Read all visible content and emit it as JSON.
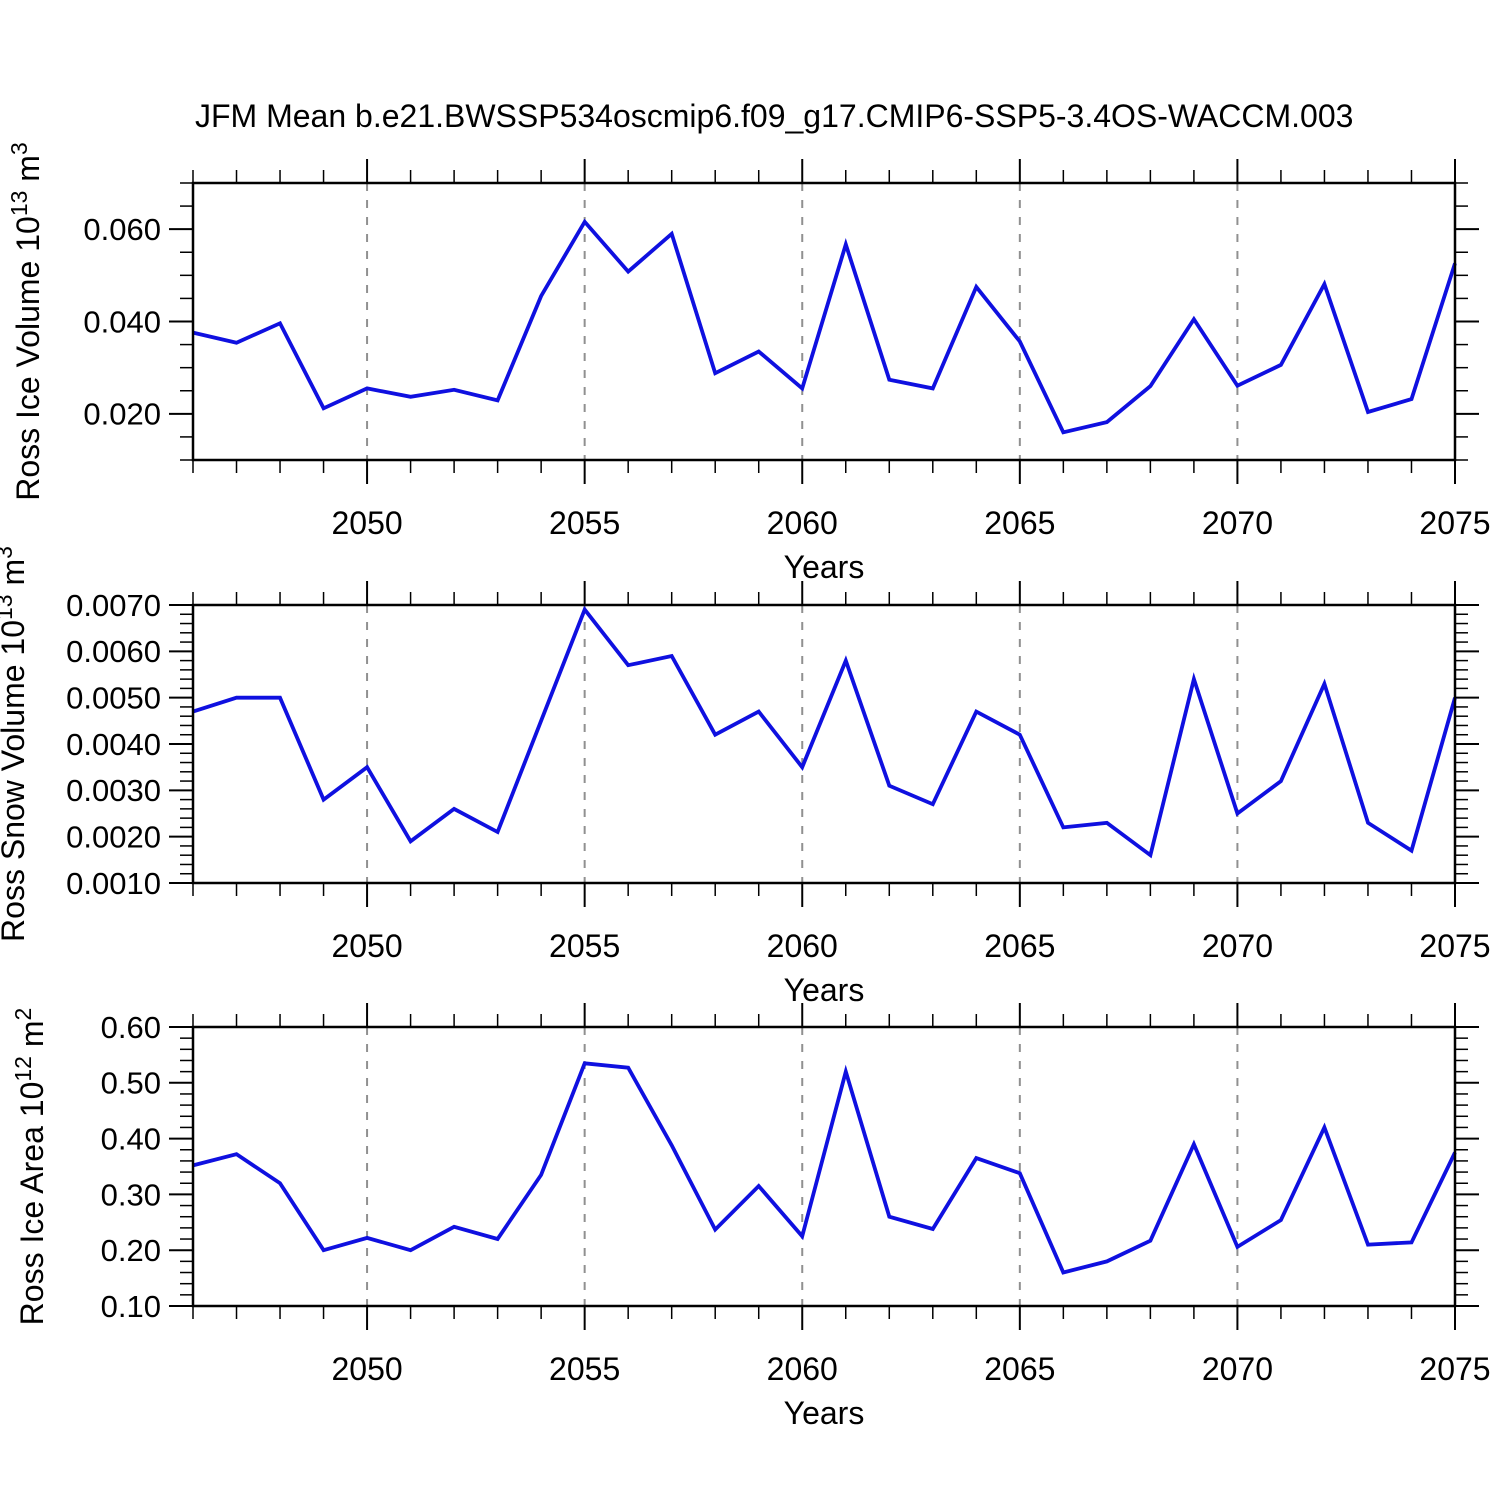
{
  "title": "JFM Mean b.e21.BWSSP534oscmip6.f09_g17.CMIP6-SSP5-3.4OS-WACCM.003",
  "colors": {
    "line": "#0f10e0",
    "grid": "#909090",
    "axis": "#000000",
    "text": "#000000",
    "background": "#ffffff"
  },
  "x_axis": {
    "label": "Years",
    "years": [
      2046,
      2047,
      2048,
      2049,
      2050,
      2051,
      2052,
      2053,
      2054,
      2055,
      2056,
      2057,
      2058,
      2059,
      2060,
      2061,
      2062,
      2063,
      2064,
      2065,
      2066,
      2067,
      2068,
      2069,
      2070,
      2071,
      2072,
      2073,
      2074,
      2075
    ],
    "tick_label_years": [
      2050,
      2055,
      2060,
      2065,
      2070,
      2075
    ],
    "gridline_years": [
      2050,
      2055,
      2060,
      2065,
      2070
    ],
    "range": [
      2046,
      2075
    ]
  },
  "chart_data": [
    {
      "type": "line",
      "title": "",
      "ylabel": "Ross Ice Volume 10^13 m^3",
      "ylabel_segments": [
        {
          "text": "Ross Ice Volume 10",
          "sup": false
        },
        {
          "text": "13",
          "sup": true
        },
        {
          "text": " m",
          "sup": false
        },
        {
          "text": "3",
          "sup": true
        }
      ],
      "xlabel": "Years",
      "x": [
        2046,
        2047,
        2048,
        2049,
        2050,
        2051,
        2052,
        2053,
        2054,
        2055,
        2056,
        2057,
        2058,
        2059,
        2060,
        2061,
        2062,
        2063,
        2064,
        2065,
        2066,
        2067,
        2068,
        2069,
        2070,
        2071,
        2072,
        2073,
        2074,
        2075
      ],
      "values": [
        0.0376,
        0.0354,
        0.0396,
        0.0212,
        0.0255,
        0.0237,
        0.0252,
        0.0229,
        0.0455,
        0.0616,
        0.0508,
        0.059,
        0.0288,
        0.0335,
        0.0255,
        0.0567,
        0.0274,
        0.0255,
        0.0475,
        0.0357,
        0.016,
        0.0182,
        0.026,
        0.0405,
        0.0261,
        0.0306,
        0.0481,
        0.0204,
        0.0232,
        0.0526
      ],
      "ylim": [
        0.01,
        0.07
      ],
      "ytick_values": [
        0.02,
        0.04,
        0.06
      ],
      "ytick_labels": [
        "0.020",
        "0.040",
        "0.060"
      ],
      "ytick_minor_step": 0.005,
      "grid": "vertical-dashed-at-major-x",
      "legend": "none"
    },
    {
      "type": "line",
      "title": "",
      "ylabel": "Ross Snow Volume 10^13 m^3",
      "ylabel_segments": [
        {
          "text": "Ross Snow Volume 10",
          "sup": false
        },
        {
          "text": "13",
          "sup": true
        },
        {
          "text": " m",
          "sup": false
        },
        {
          "text": "3",
          "sup": true
        }
      ],
      "xlabel": "Years",
      "x": [
        2046,
        2047,
        2048,
        2049,
        2050,
        2051,
        2052,
        2053,
        2054,
        2055,
        2056,
        2057,
        2058,
        2059,
        2060,
        2061,
        2062,
        2063,
        2064,
        2065,
        2066,
        2067,
        2068,
        2069,
        2070,
        2071,
        2072,
        2073,
        2074,
        2075
      ],
      "values": [
        0.0047,
        0.005,
        0.005,
        0.0028,
        0.0035,
        0.0019,
        0.0026,
        0.0021,
        0.0045,
        0.0069,
        0.0057,
        0.0059,
        0.0042,
        0.0047,
        0.0035,
        0.0058,
        0.0031,
        0.0027,
        0.0047,
        0.0042,
        0.0022,
        0.0023,
        0.0016,
        0.0054,
        0.0025,
        0.0032,
        0.0053,
        0.0023,
        0.0017,
        0.005
      ],
      "ylim": [
        0.001,
        0.007
      ],
      "ytick_values": [
        0.001,
        0.002,
        0.003,
        0.004,
        0.005,
        0.006,
        0.007
      ],
      "ytick_labels": [
        "0.0010",
        "0.0020",
        "0.0030",
        "0.0040",
        "0.0050",
        "0.0060",
        "0.0070"
      ],
      "ytick_minor_step": 0.0002,
      "grid": "vertical-dashed-at-major-x",
      "legend": "none"
    },
    {
      "type": "line",
      "title": "",
      "ylabel": "Ross Ice Area 10^12 m^2",
      "ylabel_segments": [
        {
          "text": "Ross Ice Area 10",
          "sup": false
        },
        {
          "text": "12",
          "sup": true
        },
        {
          "text": " m",
          "sup": false
        },
        {
          "text": "2",
          "sup": true
        }
      ],
      "xlabel": "Years",
      "x": [
        2046,
        2047,
        2048,
        2049,
        2050,
        2051,
        2052,
        2053,
        2054,
        2055,
        2056,
        2057,
        2058,
        2059,
        2060,
        2061,
        2062,
        2063,
        2064,
        2065,
        2066,
        2067,
        2068,
        2069,
        2070,
        2071,
        2072,
        2073,
        2074,
        2075
      ],
      "values": [
        0.352,
        0.372,
        0.32,
        0.2,
        0.222,
        0.2,
        0.242,
        0.22,
        0.335,
        0.535,
        0.527,
        0.388,
        0.237,
        0.315,
        0.225,
        0.52,
        0.26,
        0.238,
        0.365,
        0.338,
        0.16,
        0.18,
        0.217,
        0.39,
        0.206,
        0.254,
        0.42,
        0.21,
        0.214,
        0.375
      ],
      "ylim": [
        0.1,
        0.6
      ],
      "ytick_values": [
        0.1,
        0.2,
        0.3,
        0.4,
        0.5,
        0.6
      ],
      "ytick_labels": [
        "0.10",
        "0.20",
        "0.30",
        "0.40",
        "0.50",
        "0.60"
      ],
      "ytick_minor_step": 0.02,
      "grid": "vertical-dashed-at-major-x",
      "legend": "none"
    }
  ]
}
